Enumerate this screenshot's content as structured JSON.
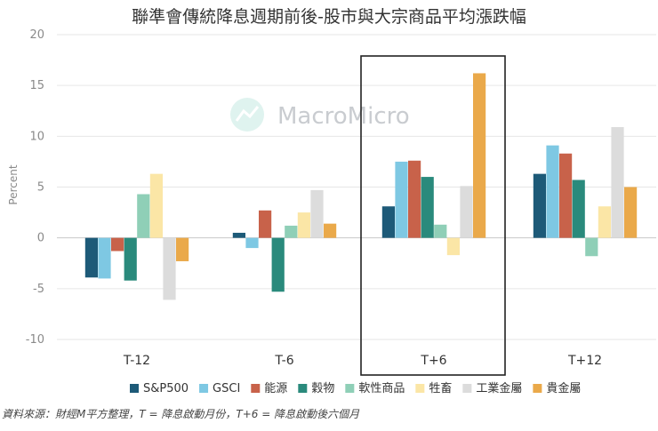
{
  "chart_data": {
    "type": "bar",
    "title": "聯準會傳統降息週期前後-股市與大宗商品平均漲跌幅",
    "ylabel": "Percent",
    "xlabel": "",
    "ylim": [
      -10,
      20
    ],
    "yticks": [
      20,
      15,
      10,
      5,
      0,
      -5,
      -10
    ],
    "categories": [
      "T-12",
      "T-6",
      "T+6",
      "T+12"
    ],
    "highlighted_category": "T+6",
    "series": [
      {
        "name": "S&P500",
        "color": "#1d5a78",
        "values": [
          -3.9,
          0.5,
          3.1,
          6.3
        ]
      },
      {
        "name": "GSCI",
        "color": "#7ec8e3",
        "values": [
          -4.0,
          -1.0,
          7.5,
          9.1
        ]
      },
      {
        "name": "能源",
        "color": "#c8624a",
        "values": [
          -1.3,
          2.7,
          7.6,
          8.3
        ]
      },
      {
        "name": "穀物",
        "color": "#2a8a7c",
        "values": [
          -4.2,
          -5.3,
          6.0,
          5.7
        ]
      },
      {
        "name": "軟性商品",
        "color": "#8fcfb7",
        "values": [
          4.3,
          1.2,
          1.3,
          -1.8
        ]
      },
      {
        "name": "牲畜",
        "color": "#fbe6a6",
        "values": [
          6.3,
          2.5,
          -1.7,
          3.1
        ]
      },
      {
        "name": "工業金屬",
        "color": "#dcdcdc",
        "values": [
          -6.1,
          4.7,
          5.1,
          10.9
        ]
      },
      {
        "name": "貴金屬",
        "color": "#eaa94a",
        "values": [
          -2.3,
          1.4,
          16.2,
          5.0
        ]
      }
    ]
  },
  "watermark": {
    "text": "MacroMicro",
    "icon": "macromicro-logo-icon"
  },
  "source_note": "資料來源：財經M平方整理，T = 降息啟動月份，T+6 = 降息啟動後六個月"
}
